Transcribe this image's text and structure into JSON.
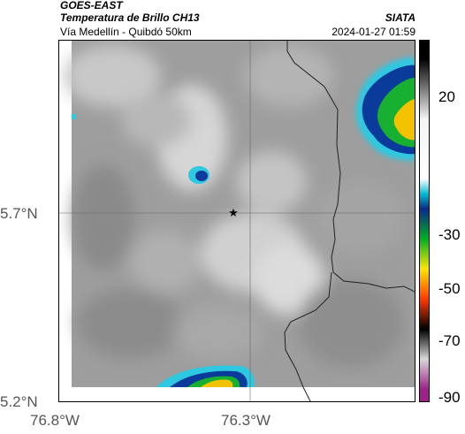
{
  "header": {
    "satellite": "GOES-EAST",
    "product": "Temperatura de Brillo CH13",
    "organization": "SIATA",
    "region": "Vía Medellín - Quibdó 50km",
    "datetime": "2024-01-27 01:59"
  },
  "axes": {
    "lat_labels": [
      "5.7°N",
      "5.2°N"
    ],
    "lon_labels": [
      "76.8°W",
      "76.3°W"
    ]
  },
  "colorbar": {
    "tick_labels": [
      "20",
      "-30",
      "-50",
      "-70",
      "-90"
    ],
    "stops": [
      {
        "value": 20,
        "color": "#000000"
      },
      {
        "value": 0,
        "color": "#f4f4f4"
      },
      {
        "value": -20,
        "color": "#ffffff"
      },
      {
        "value": -25,
        "color": "#00bcd4"
      },
      {
        "value": -30,
        "color": "#0a2a8a"
      },
      {
        "value": -40,
        "color": "#00b020"
      },
      {
        "value": -50,
        "color": "#ffe600"
      },
      {
        "value": -60,
        "color": "#ff3a00"
      },
      {
        "value": -70,
        "color": "#000000"
      },
      {
        "value": -80,
        "color": "#d8d8d8"
      },
      {
        "value": -90,
        "color": "#a0208a"
      }
    ]
  },
  "map": {
    "marker_symbol": "★",
    "colors": {
      "cold_core": "#f2c200",
      "green": "#18b030",
      "blue": "#0a3a9a",
      "cyan": "#2ec8e0",
      "border": "#222222"
    }
  }
}
